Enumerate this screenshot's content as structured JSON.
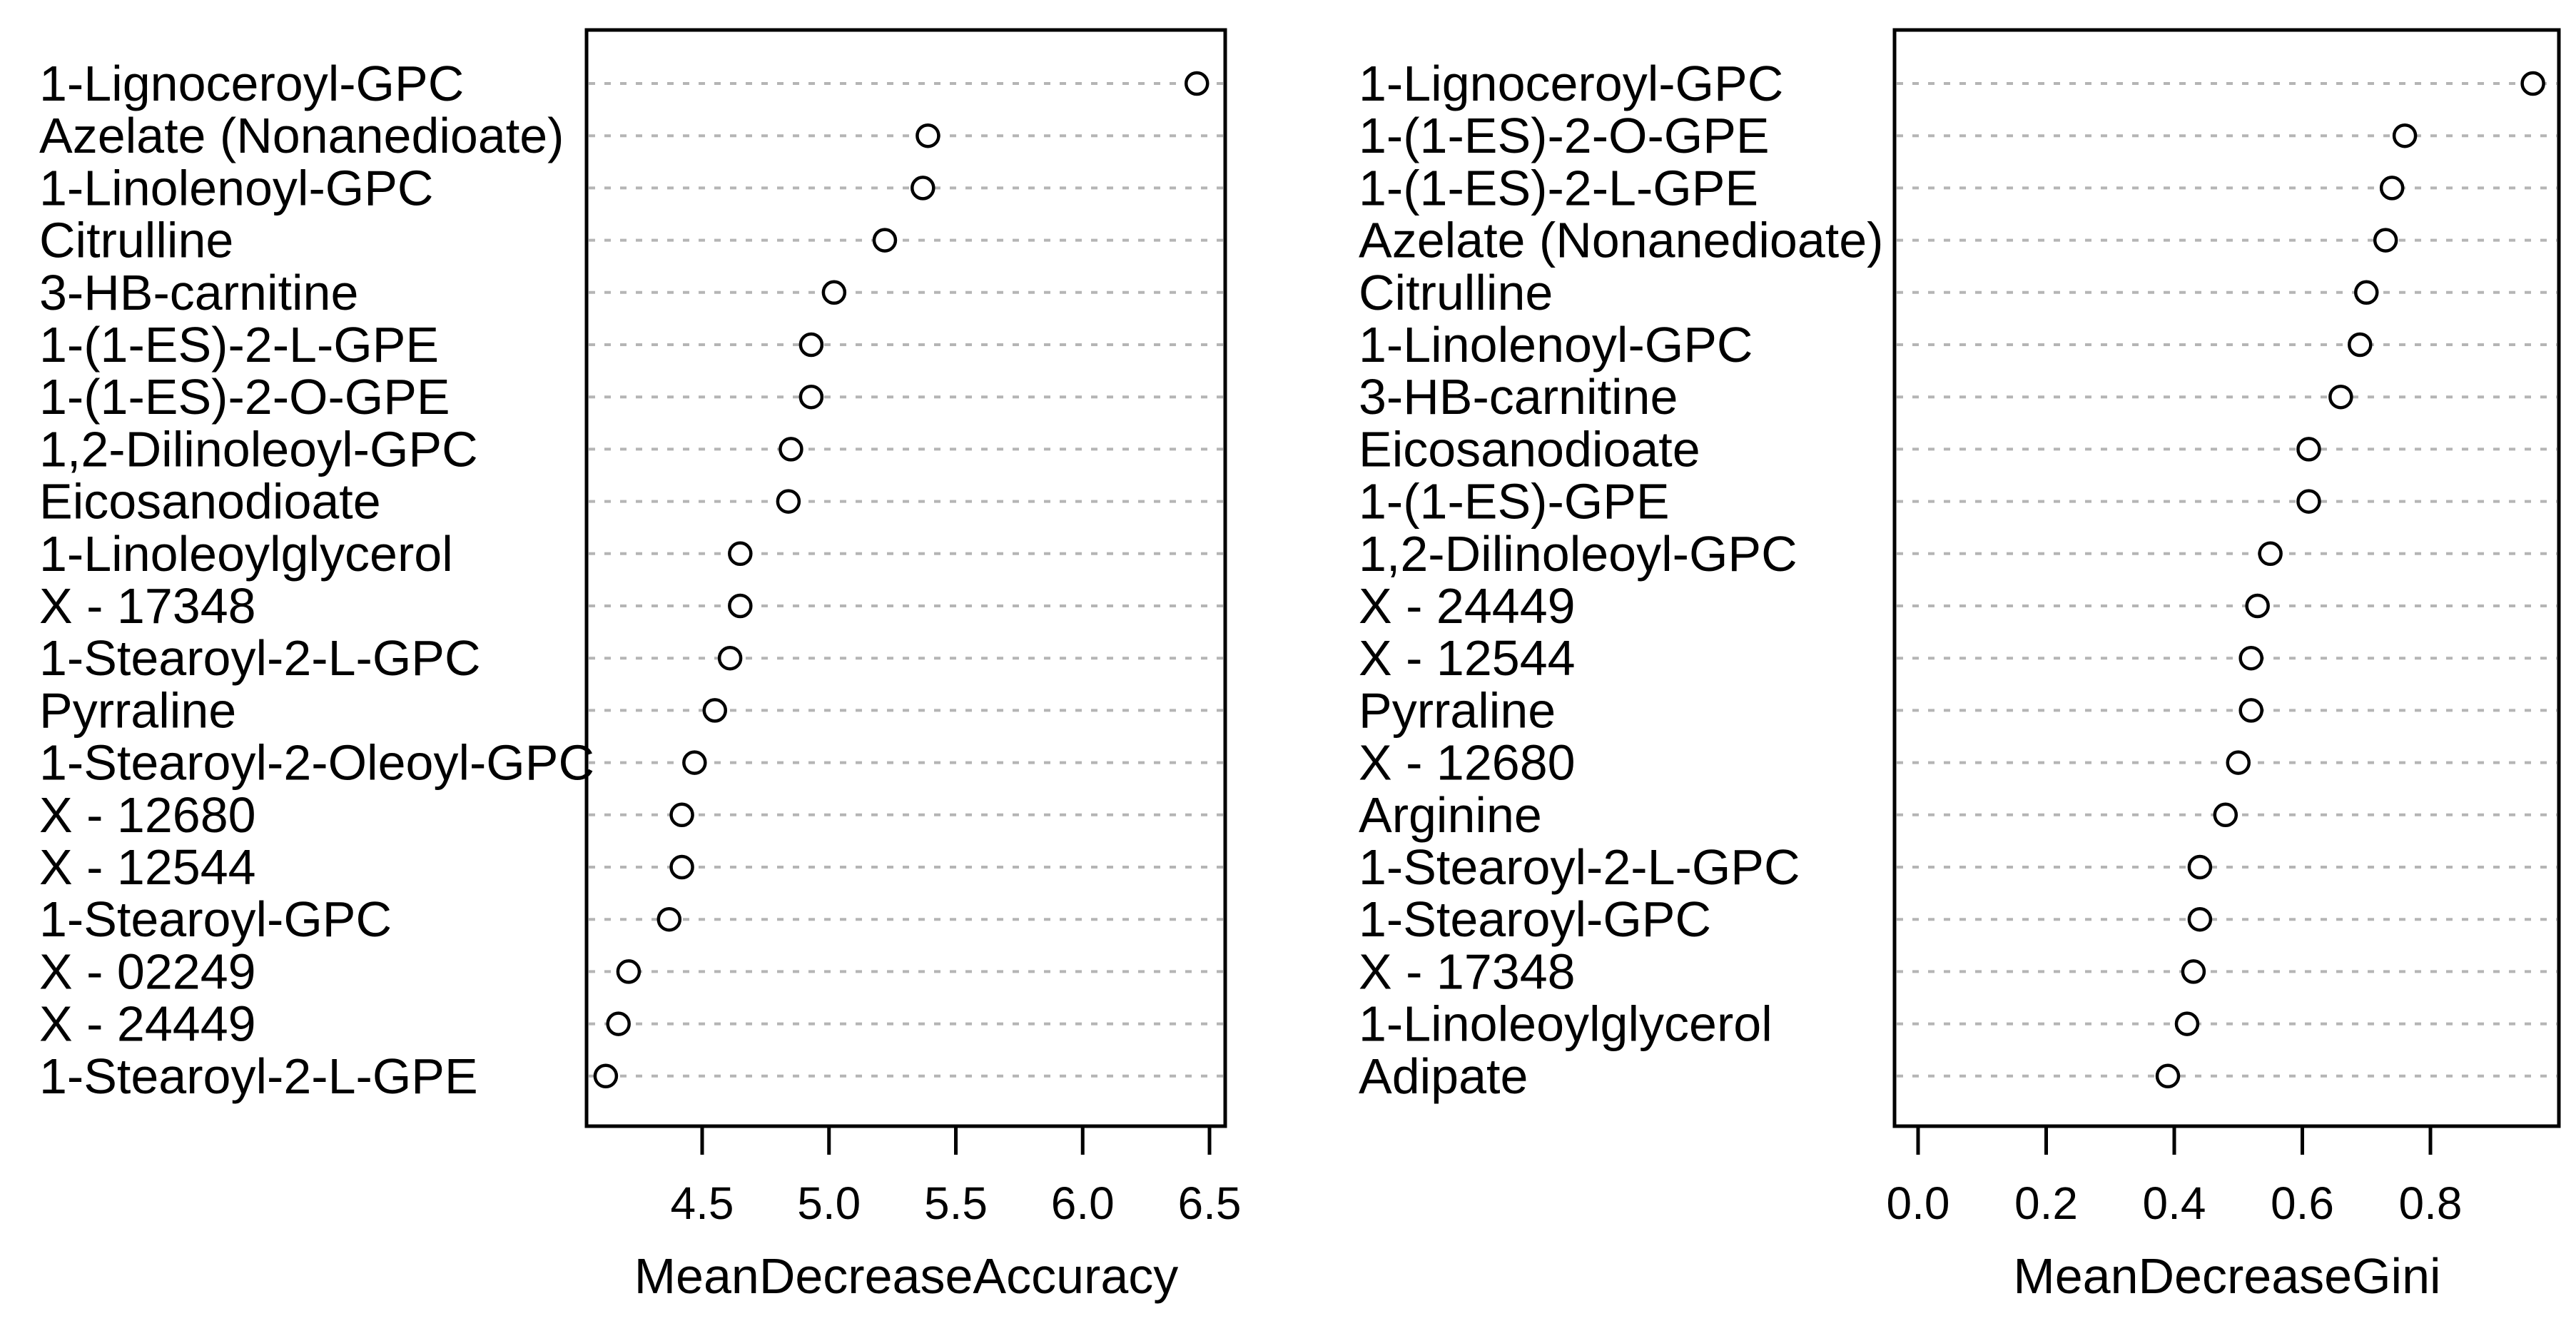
{
  "figure": {
    "background": "#ffffff",
    "text_color": "#000000",
    "grid_color": "#b5b5b5",
    "border_color": "#000000",
    "marker": "open-circle",
    "marker_fill": "#ffffff"
  },
  "chart_data": [
    {
      "type": "scatter",
      "variant": "dot-plot",
      "title": "",
      "xlabel": "MeanDecreaseAccuracy",
      "ylabel": "",
      "legend": "none",
      "grid": "horizontal-dotted",
      "xlim": [
        4.04,
        6.56
      ],
      "x_ticks": [
        "4.5",
        "5.0",
        "5.5",
        "6.0",
        "6.5"
      ],
      "x_tick_values": [
        4.5,
        5.0,
        5.5,
        6.0,
        6.5
      ],
      "categories": [
        "1-Lignoceroyl-GPC",
        "Azelate (Nonanedioate)",
        "1-Linolenoyl-GPC",
        "Citrulline",
        "3-HB-carnitine",
        "1-(1-ES)-2-L-GPE",
        "1-(1-ES)-2-O-GPE",
        "1,2-Dilinoleoyl-GPC",
        "Eicosanodioate",
        "1-Linoleoylglycerol",
        "X - 17348",
        "1-Stearoyl-2-L-GPC",
        "Pyrraline",
        "1-Stearoyl-2-Oleoyl-GPC",
        "X - 12680",
        "X - 12544",
        "1-Stearoyl-GPC",
        "X - 02249",
        "X - 24449",
        "1-Stearoyl-2-L-GPE"
      ],
      "values": [
        6.45,
        5.39,
        5.37,
        5.22,
        5.02,
        4.93,
        4.93,
        4.85,
        4.84,
        4.65,
        4.65,
        4.61,
        4.55,
        4.47,
        4.42,
        4.42,
        4.37,
        4.21,
        4.17,
        4.12
      ]
    },
    {
      "type": "scatter",
      "variant": "dot-plot",
      "title": "",
      "xlabel": "MeanDecreaseGini",
      "ylabel": "",
      "legend": "none",
      "grid": "horizontal-dotted",
      "xlim": [
        -0.04,
        1.0
      ],
      "x_ticks": [
        "0.0",
        "0.2",
        "0.4",
        "0.6",
        "0.8"
      ],
      "x_tick_values": [
        0.0,
        0.2,
        0.4,
        0.6,
        0.8
      ],
      "categories": [
        "1-Lignoceroyl-GPC",
        "1-(1-ES)-2-O-GPE",
        "1-(1-ES)-2-L-GPE",
        "Azelate (Nonanedioate)",
        "Citrulline",
        "1-Linolenoyl-GPC",
        "3-HB-carnitine",
        "Eicosanodioate",
        "1-(1-ES)-GPE",
        "1,2-Dilinoleoyl-GPC",
        "X - 24449",
        "X - 12544",
        "Pyrraline",
        "X - 12680",
        "Arginine",
        "1-Stearoyl-2-L-GPC",
        "1-Stearoyl-GPC",
        "X - 17348",
        "1-Linoleoylglycerol",
        "Adipate"
      ],
      "values": [
        0.96,
        0.76,
        0.74,
        0.73,
        0.7,
        0.69,
        0.66,
        0.61,
        0.61,
        0.55,
        0.53,
        0.52,
        0.52,
        0.5,
        0.48,
        0.44,
        0.44,
        0.43,
        0.42,
        0.39
      ]
    }
  ]
}
